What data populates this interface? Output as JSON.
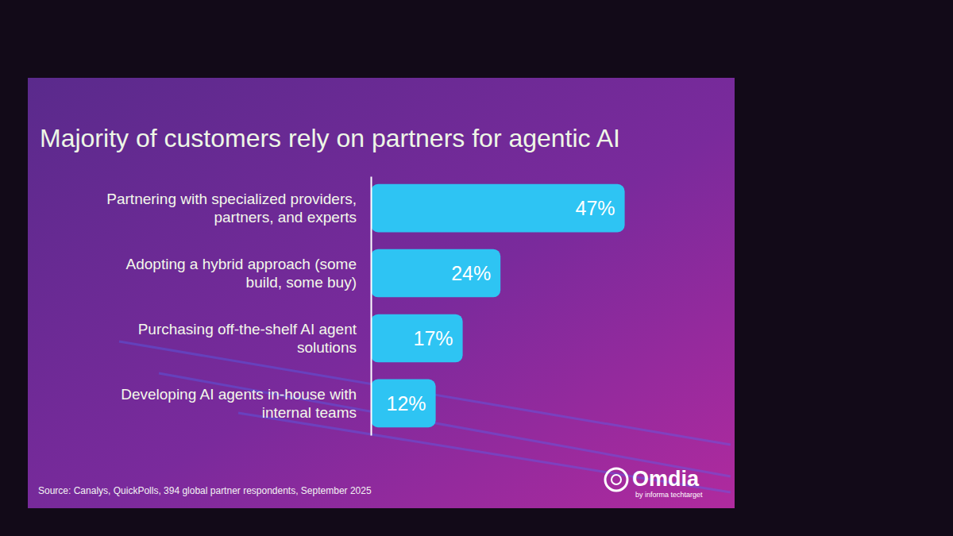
{
  "chart_data": {
    "type": "bar",
    "orientation": "horizontal",
    "title": "Majority of customers rely on partners for agentic AI",
    "categories": [
      "Partnering with specialized providers, partners, and experts",
      "Adopting a hybrid approach (some build, some buy)",
      "Purchasing off-the-shelf AI agent solutions",
      "Developing AI agents in-house with internal teams"
    ],
    "values": [
      47,
      24,
      17,
      12
    ],
    "value_labels": [
      "47%",
      "24%",
      "17%",
      "12%"
    ],
    "data_labels": true,
    "color": "#2ec4f3",
    "xlim": [
      0,
      50
    ],
    "tick_labels": false,
    "grid": false,
    "annotations": [
      "Source: Canalys, QuickPolls, 394 global partner respondents, September 2025",
      "Omdia",
      "by informa techtarget"
    ]
  }
}
